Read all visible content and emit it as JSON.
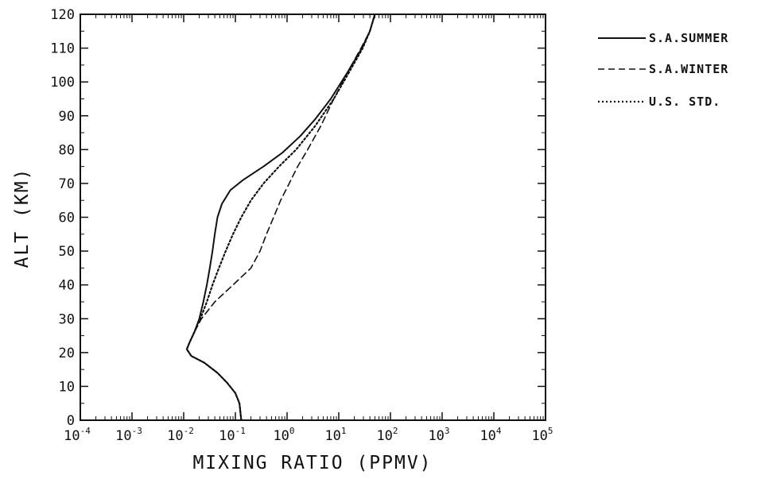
{
  "chart_data": {
    "type": "line",
    "title": "",
    "xlabel": "MIXING RATIO (PPMV)",
    "ylabel": "ALT (KM)",
    "x_scale": "log",
    "xlim": [
      0.0001,
      100000
    ],
    "ylim": [
      0,
      120
    ],
    "x_tick_labels": [
      {
        "base": "10",
        "exp": "-4"
      },
      {
        "base": "10",
        "exp": "-3"
      },
      {
        "base": "10",
        "exp": "-2"
      },
      {
        "base": "10",
        "exp": "-1"
      },
      {
        "base": "10",
        "exp": "0"
      },
      {
        "base": "10",
        "exp": "1"
      },
      {
        "base": "10",
        "exp": "2"
      },
      {
        "base": "10",
        "exp": "3"
      },
      {
        "base": "10",
        "exp": "4"
      },
      {
        "base": "10",
        "exp": "5"
      }
    ],
    "y_tick_labels": [
      "0",
      "10",
      "20",
      "30",
      "40",
      "50",
      "60",
      "70",
      "80",
      "90",
      "100",
      "110",
      "120"
    ],
    "grid": false,
    "legend_position": "right",
    "series": [
      {
        "name": "S.A.SUMMER",
        "style": "solid",
        "points": [
          [
            0.13,
            0
          ],
          [
            0.12,
            5
          ],
          [
            0.1,
            8
          ],
          [
            0.07,
            11
          ],
          [
            0.045,
            14
          ],
          [
            0.025,
            17
          ],
          [
            0.014,
            19
          ],
          [
            0.0115,
            21
          ],
          [
            0.013,
            23
          ],
          [
            0.016,
            26
          ],
          [
            0.02,
            30
          ],
          [
            0.024,
            35
          ],
          [
            0.028,
            40
          ],
          [
            0.032,
            45
          ],
          [
            0.036,
            50
          ],
          [
            0.04,
            55
          ],
          [
            0.045,
            60
          ],
          [
            0.055,
            64
          ],
          [
            0.08,
            68
          ],
          [
            0.14,
            71
          ],
          [
            0.35,
            75
          ],
          [
            0.8,
            79
          ],
          [
            1.8,
            84
          ],
          [
            3.5,
            89
          ],
          [
            7,
            95
          ],
          [
            15,
            103
          ],
          [
            28,
            110
          ],
          [
            40,
            115
          ],
          [
            50,
            120
          ]
        ]
      },
      {
        "name": "S.A.WINTER",
        "style": "dashed",
        "points": [
          [
            0.13,
            0
          ],
          [
            0.12,
            5
          ],
          [
            0.1,
            8
          ],
          [
            0.07,
            11
          ],
          [
            0.045,
            14
          ],
          [
            0.025,
            17
          ],
          [
            0.014,
            19
          ],
          [
            0.0115,
            21
          ],
          [
            0.013,
            23
          ],
          [
            0.016,
            26
          ],
          [
            0.022,
            30
          ],
          [
            0.04,
            35
          ],
          [
            0.09,
            40
          ],
          [
            0.2,
            45
          ],
          [
            0.3,
            50
          ],
          [
            0.4,
            55
          ],
          [
            0.55,
            60
          ],
          [
            0.75,
            65
          ],
          [
            1.1,
            70
          ],
          [
            1.6,
            75
          ],
          [
            2.5,
            80
          ],
          [
            4.5,
            87
          ],
          [
            8,
            95
          ],
          [
            15,
            103
          ],
          [
            27,
            110
          ],
          [
            40,
            115
          ],
          [
            50,
            120
          ]
        ]
      },
      {
        "name": "U.S. STD.",
        "style": "dotted",
        "points": [
          [
            0.13,
            0
          ],
          [
            0.12,
            5
          ],
          [
            0.1,
            8
          ],
          [
            0.07,
            11
          ],
          [
            0.045,
            14
          ],
          [
            0.025,
            17
          ],
          [
            0.014,
            19
          ],
          [
            0.0115,
            21
          ],
          [
            0.013,
            23
          ],
          [
            0.016,
            26
          ],
          [
            0.021,
            30
          ],
          [
            0.028,
            35
          ],
          [
            0.036,
            40
          ],
          [
            0.048,
            45
          ],
          [
            0.065,
            50
          ],
          [
            0.09,
            55
          ],
          [
            0.13,
            60
          ],
          [
            0.2,
            65
          ],
          [
            0.35,
            70
          ],
          [
            0.7,
            75
          ],
          [
            1.5,
            80
          ],
          [
            3.5,
            87
          ],
          [
            8,
            95
          ],
          [
            16,
            103
          ],
          [
            29,
            110
          ],
          [
            40,
            115
          ],
          [
            50,
            120
          ]
        ]
      }
    ]
  }
}
